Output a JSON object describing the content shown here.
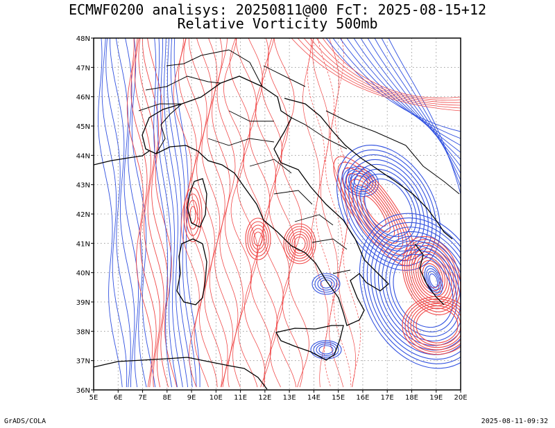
{
  "title": {
    "line1": "ECMWF0200 analisys: 20250811@00 FcT: 2025-08-15+12",
    "line2": "Relative Vorticity 500mb"
  },
  "axes": {
    "x_ticks": [
      "5E",
      "6E",
      "7E",
      "8E",
      "9E",
      "10E",
      "11E",
      "12E",
      "13E",
      "14E",
      "15E",
      "16E",
      "17E",
      "18E",
      "19E",
      "20E"
    ],
    "y_ticks": [
      "36N",
      "37N",
      "38N",
      "39N",
      "40N",
      "41N",
      "42N",
      "43N",
      "44N",
      "45N",
      "46N",
      "47N",
      "48N"
    ],
    "lon_range": [
      5,
      20
    ],
    "lat_range": [
      36,
      48
    ],
    "grid": "dotted"
  },
  "colors": {
    "positive": "#f04848",
    "negative": "#3050e0",
    "coast": "#000000",
    "grid": "#8a8a8a"
  },
  "footer": {
    "left": "GrADS/COLA",
    "right": "2025-08-11-09:32"
  }
}
